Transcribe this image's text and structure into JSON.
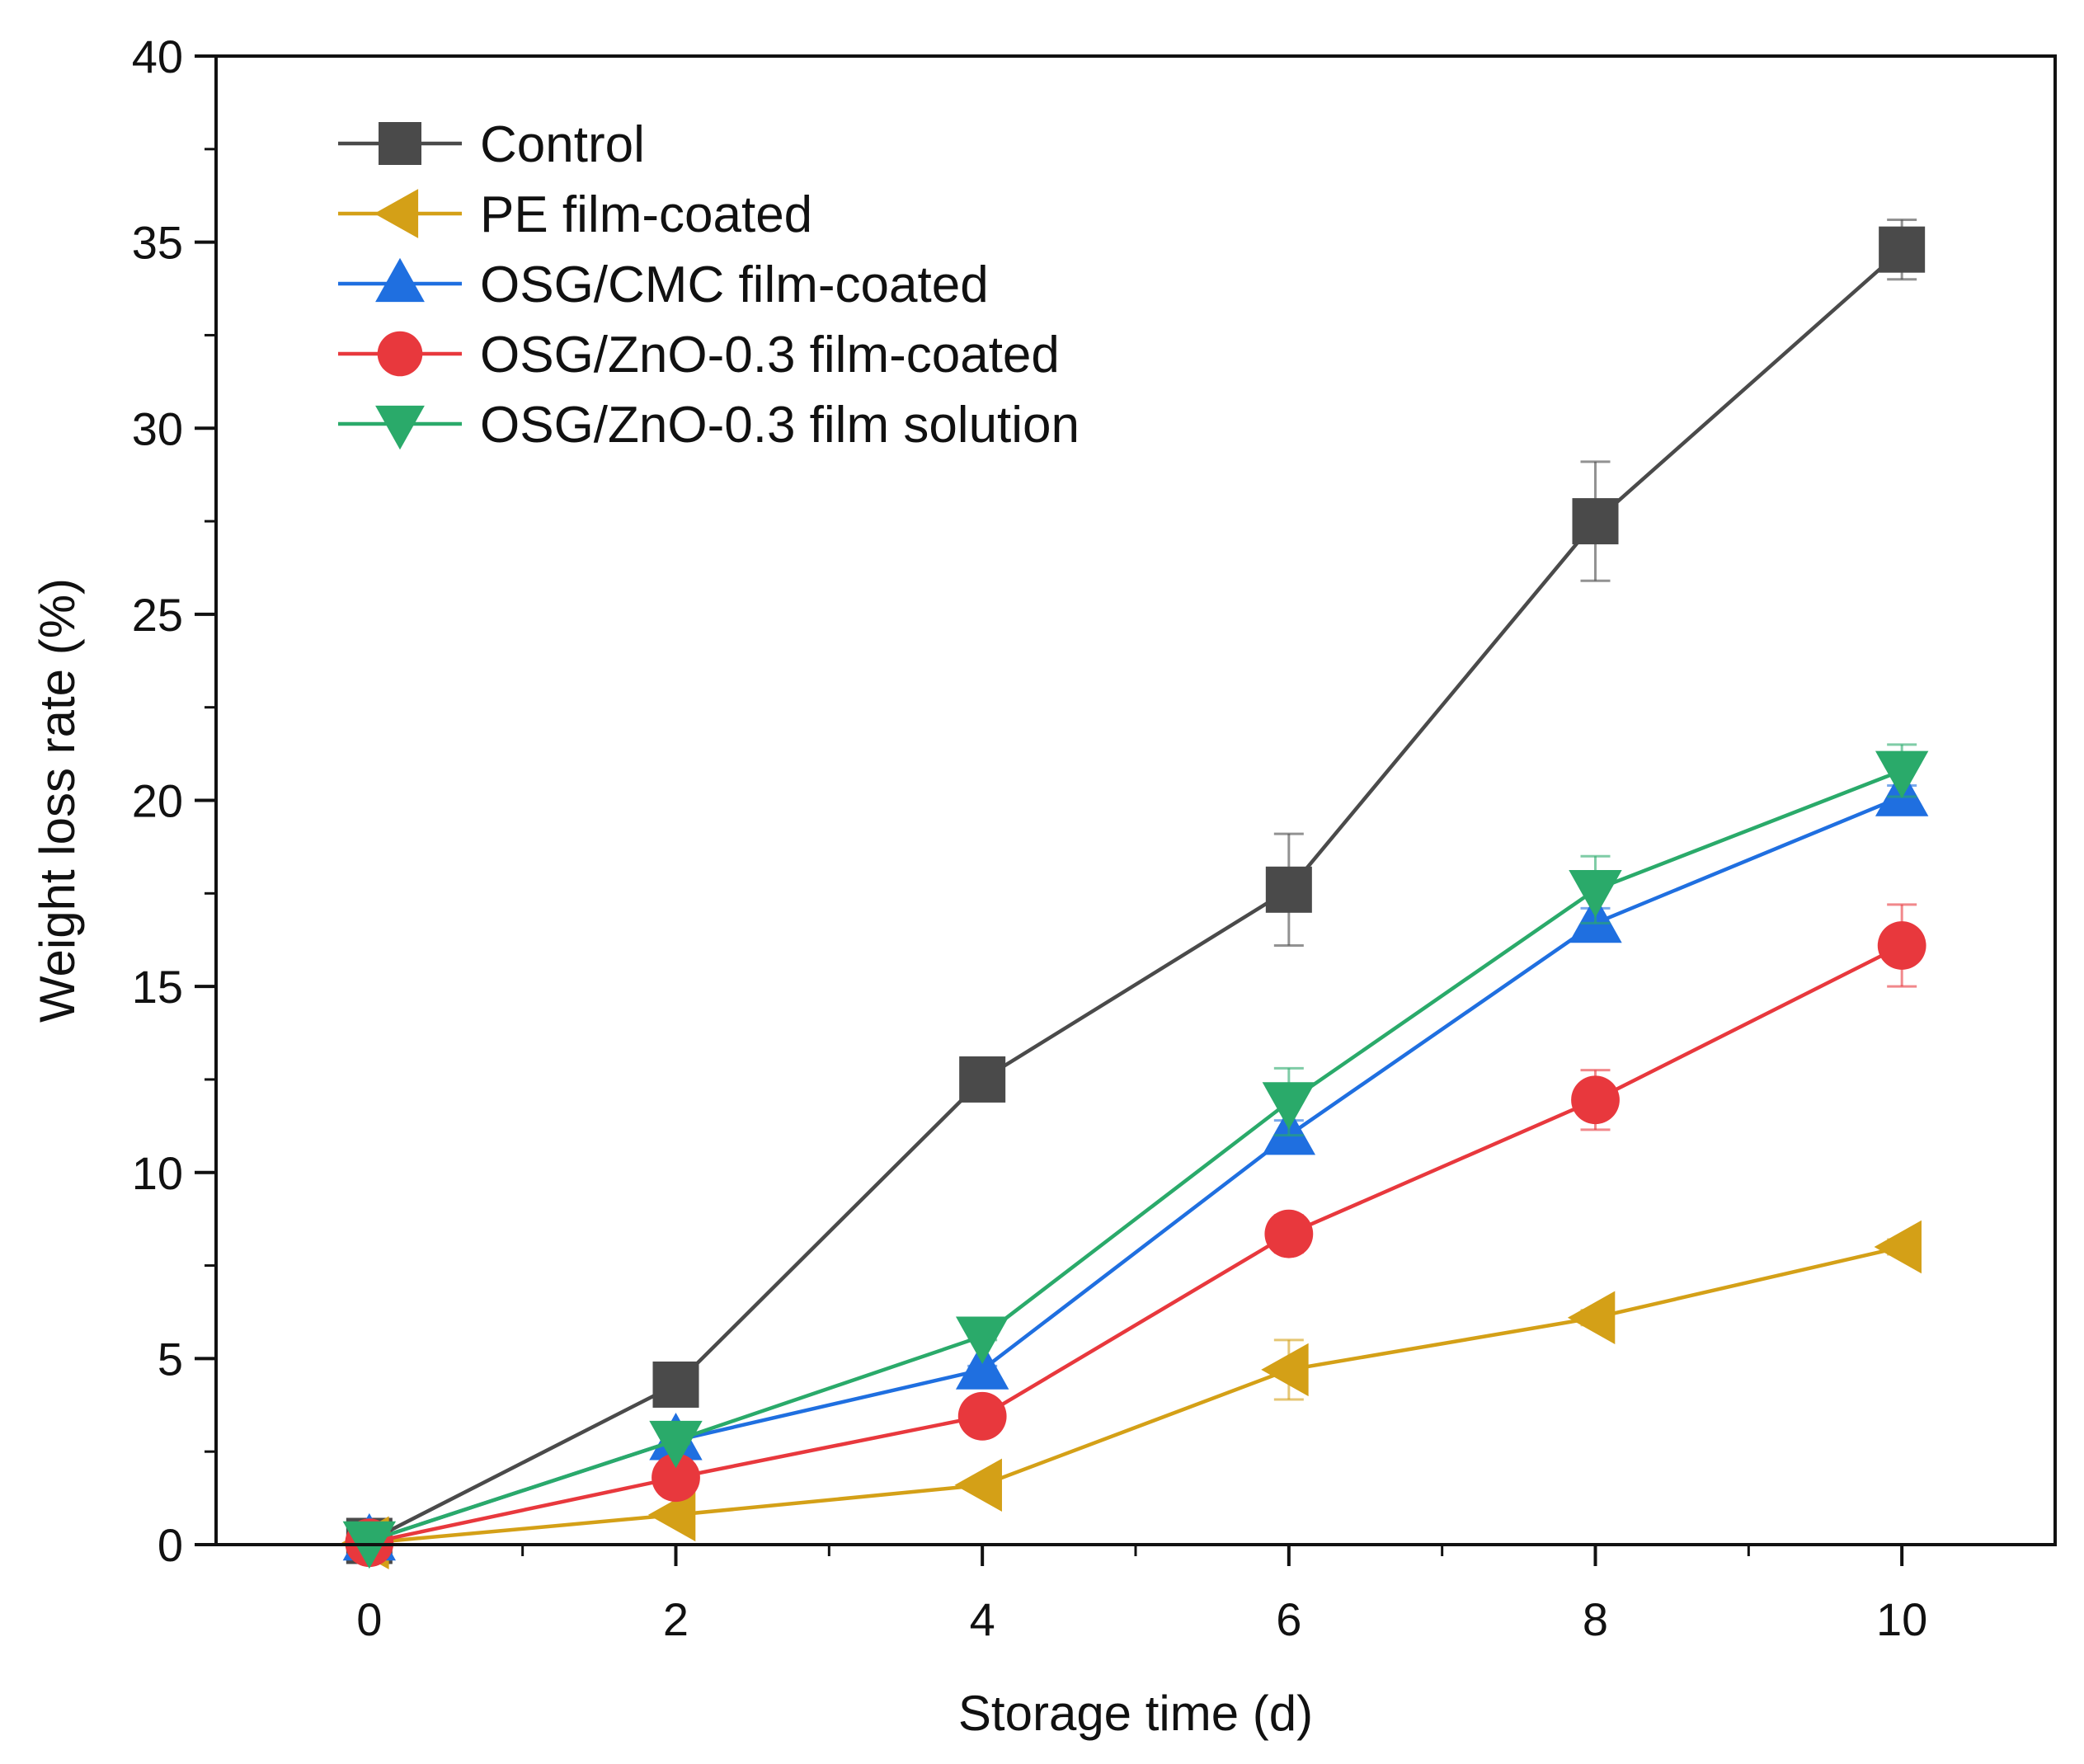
{
  "chart_data": {
    "type": "line",
    "title": "",
    "xlabel": "Storage time (d)",
    "ylabel": "Weight loss rate (%)",
    "xlim": [
      -1,
      11
    ],
    "ylim": [
      0,
      40
    ],
    "xticks": [
      0,
      2,
      4,
      6,
      8,
      10
    ],
    "yticks": [
      0,
      5,
      10,
      15,
      20,
      25,
      30,
      35,
      40
    ],
    "x": [
      0,
      2,
      4,
      6,
      8,
      10
    ],
    "legend_position": "top-left",
    "series": [
      {
        "name": "Control",
        "color": "#4a4a4a",
        "marker": "square",
        "values": [
          0.1,
          4.3,
          12.5,
          17.6,
          27.5,
          34.8
        ],
        "errors": [
          0,
          0.15,
          0.15,
          1.5,
          1.6,
          0.8
        ]
      },
      {
        "name": "PE film-coated",
        "color": "#d4a017",
        "marker": "triangle-left",
        "values": [
          0.05,
          0.8,
          1.6,
          4.7,
          6.1,
          8.0
        ],
        "errors": [
          0,
          0.1,
          0.1,
          0.8,
          0.2,
          0.2
        ]
      },
      {
        "name": "OSG/CMC film-coated",
        "color": "#1f6fe0",
        "marker": "triangle-up",
        "values": [
          0.1,
          2.8,
          4.7,
          11.0,
          16.7,
          20.1
        ],
        "errors": [
          0,
          0.1,
          0.1,
          0.4,
          0.4,
          0.3
        ]
      },
      {
        "name": "OSG/ZnO-0.3 film-coated",
        "color": "#e8383d",
        "marker": "circle",
        "values": [
          0.05,
          1.8,
          3.45,
          8.35,
          11.95,
          16.1
        ],
        "errors": [
          0,
          0.1,
          0.1,
          0.5,
          0.8,
          1.1
        ]
      },
      {
        "name": "OSG/ZnO-0.3 film solution",
        "color": "#2aaa6a",
        "marker": "triangle-down",
        "values": [
          0.1,
          2.8,
          5.6,
          11.9,
          17.6,
          20.8
        ],
        "errors": [
          0,
          0.1,
          0.1,
          0.9,
          0.9,
          0.7
        ]
      }
    ]
  }
}
